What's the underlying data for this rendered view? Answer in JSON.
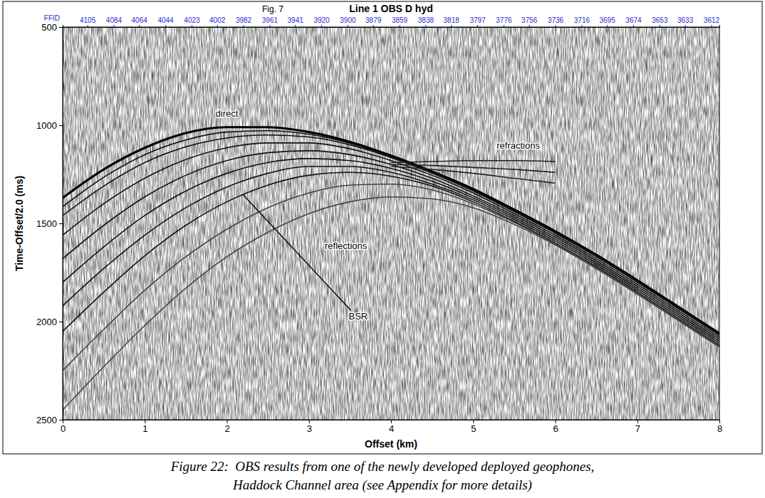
{
  "chart_data": {
    "type": "line",
    "figure_label": "Fig. 7",
    "title": "Line 1 OBS D hyd",
    "xlabel": "Offset (km)",
    "ylabel": "Time-Offset/2.0 (ms)",
    "caption": [
      "Figure 22:  OBS results from one of the newly developed deployed geophones,",
      "Haddock Channel area (see Appendix for more details)"
    ],
    "xlim": [
      0,
      8
    ],
    "xticks": [
      0,
      1,
      2,
      3,
      4,
      5,
      6,
      7,
      8
    ],
    "ylim": [
      500,
      2500
    ],
    "yticks": [
      500,
      1000,
      1500,
      2000,
      2500
    ],
    "grid": false,
    "top_axis": {
      "label": "FFID",
      "color": "#2b2bd0",
      "ticks": [
        {
          "value": 0.3,
          "label": "4105"
        },
        {
          "value": 0.62,
          "label": "4084"
        },
        {
          "value": 0.93,
          "label": "4064"
        },
        {
          "value": 1.25,
          "label": "4044"
        },
        {
          "value": 1.57,
          "label": "4023"
        },
        {
          "value": 1.88,
          "label": "4002"
        },
        {
          "value": 2.2,
          "label": "3982"
        },
        {
          "value": 2.52,
          "label": "3961"
        },
        {
          "value": 2.83,
          "label": "3941"
        },
        {
          "value": 3.15,
          "label": "3920"
        },
        {
          "value": 3.47,
          "label": "3900"
        },
        {
          "value": 3.78,
          "label": "3879"
        },
        {
          "value": 4.1,
          "label": "3859"
        },
        {
          "value": 4.42,
          "label": "3838"
        },
        {
          "value": 4.73,
          "label": "3818"
        },
        {
          "value": 5.05,
          "label": "3797"
        },
        {
          "value": 5.37,
          "label": "3776"
        },
        {
          "value": 5.68,
          "label": "3756"
        },
        {
          "value": 6.0,
          "label": "3736"
        },
        {
          "value": 6.32,
          "label": "3716"
        },
        {
          "value": 6.63,
          "label": "3695"
        },
        {
          "value": 6.95,
          "label": "3674"
        },
        {
          "value": 7.27,
          "label": "3653"
        },
        {
          "value": 7.58,
          "label": "3633"
        },
        {
          "value": 7.9,
          "label": "3612"
        }
      ]
    },
    "x": [
      0,
      0.5,
      1,
      1.5,
      2,
      2.5,
      3,
      3.5,
      4,
      4.5,
      5,
      5.5,
      6,
      6.5,
      7,
      7.5,
      8
    ],
    "series": [
      {
        "color": "#000000",
        "line_style": "thick",
        "values": [
          1370,
          1225,
          1115,
          1040,
          1010,
          1010,
          1035,
          1085,
          1155,
          1235,
          1325,
          1430,
          1540,
          1660,
          1790,
          1925,
          2060
        ]
      },
      {
        "color": "#111111",
        "line_style": "solid",
        "values": [
          1415,
          1265,
          1150,
          1075,
          1035,
          1028,
          1046,
          1092,
          1160,
          1240,
          1330,
          1435,
          1545,
          1665,
          1795,
          1930,
          2065
        ]
      },
      {
        "color": "#111111",
        "line_style": "solid",
        "values": [
          1460,
          1310,
          1190,
          1110,
          1065,
          1050,
          1060,
          1100,
          1165,
          1245,
          1335,
          1440,
          1550,
          1670,
          1800,
          1935,
          2070
        ]
      },
      {
        "color": "#111111",
        "line_style": "solid",
        "values": [
          1560,
          1400,
          1270,
          1175,
          1115,
          1090,
          1090,
          1120,
          1180,
          1255,
          1345,
          1450,
          1560,
          1680,
          1810,
          1945,
          2080
        ]
      },
      {
        "color": "#111111",
        "line_style": "solid",
        "values": [
          1680,
          1510,
          1365,
          1255,
          1180,
          1140,
          1130,
          1150,
          1200,
          1270,
          1360,
          1460,
          1570,
          1690,
          1820,
          1955,
          2090
        ]
      },
      {
        "color": "#111111",
        "line_style": "solid",
        "values": [
          1800,
          1620,
          1460,
          1335,
          1245,
          1190,
          1170,
          1180,
          1220,
          1285,
          1370,
          1470,
          1580,
          1700,
          1830,
          1965,
          2100
        ]
      },
      {
        "color": "#111111",
        "line_style": "solid",
        "values": [
          1920,
          1730,
          1560,
          1420,
          1315,
          1245,
          1210,
          1210,
          1240,
          1300,
          1380,
          1480,
          1590,
          1710,
          1840,
          1975,
          2110
        ]
      },
      {
        "color": "#111111",
        "line_style": "solid",
        "values": [
          2050,
          1850,
          1665,
          1510,
          1390,
          1305,
          1255,
          1240,
          1260,
          1310,
          1390,
          1490,
          1600,
          1720,
          1850,
          1985,
          2120
        ]
      },
      {
        "color": "#444444",
        "line_style": "solid",
        "values": [
          2250,
          2040,
          1840,
          1670,
          1530,
          1420,
          1345,
          1305,
          1300,
          1330,
          1400,
          1495,
          1605,
          1725,
          1855,
          1990,
          2125
        ]
      },
      {
        "color": "#444444",
        "line_style": "solid",
        "values": [
          2450,
          2230,
          2020,
          1830,
          1670,
          1545,
          1450,
          1390,
          1365,
          1375,
          1420,
          1505,
          1610,
          1730,
          1860,
          1995,
          2130
        ]
      },
      {
        "color": "#222222",
        "line_style": "solid",
        "values": [
          null,
          null,
          null,
          null,
          null,
          null,
          null,
          null,
          1190,
          1185,
          1180,
          1180,
          1185,
          null,
          null,
          null,
          null
        ]
      },
      {
        "color": "#222222",
        "line_style": "solid",
        "values": [
          null,
          null,
          null,
          null,
          null,
          null,
          null,
          null,
          1200,
          1205,
          1215,
          1225,
          1240,
          null,
          null,
          null,
          null
        ]
      },
      {
        "color": "#222222",
        "line_style": "solid",
        "values": [
          null,
          null,
          null,
          null,
          null,
          null,
          null,
          null,
          1210,
          1225,
          1245,
          1270,
          1295,
          null,
          null,
          null,
          null
        ]
      }
    ],
    "annotations": [
      {
        "text": "direct",
        "x": 2.0,
        "y": 955
      },
      {
        "text": "refractions",
        "x": 5.55,
        "y": 1120
      },
      {
        "text": "reflections",
        "x": 3.45,
        "y": 1630
      },
      {
        "text": "BSR",
        "x": 3.6,
        "y": 1990,
        "arrow_x": 2.2,
        "arrow_y": 1355
      }
    ]
  }
}
